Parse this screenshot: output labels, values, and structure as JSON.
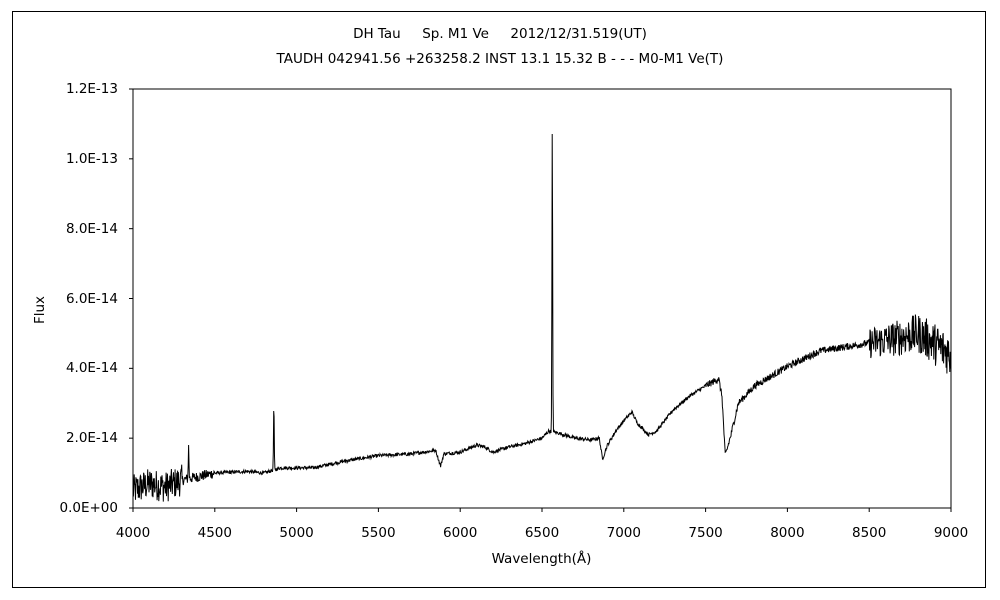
{
  "chart_data": {
    "type": "line",
    "title": "DH Tau     Sp. M1 Ve     2012/12/31.519(UT)",
    "subtitle": "TAUDH 042941.56 +263258.2 INST 13.1 15.32 B - - - M0-M1 Ve(T)",
    "xlabel": "Wavelength(Å)",
    "ylabel": "Flux",
    "xlim": [
      4000,
      9000
    ],
    "ylim": [
      0,
      1.2e-13
    ],
    "x_ticks": [
      4000,
      4500,
      5000,
      5500,
      6000,
      6500,
      7000,
      7500,
      8000,
      8500,
      9000
    ],
    "y_ticks": [
      {
        "value": 0,
        "label": "0.0E+00"
      },
      {
        "value": 2e-14,
        "label": "2.0E-14"
      },
      {
        "value": 4e-14,
        "label": "4.0E-14"
      },
      {
        "value": 6e-14,
        "label": "6.0E-14"
      },
      {
        "value": 8e-14,
        "label": "8.0E-14"
      },
      {
        "value": 1e-13,
        "label": "1.0E-13"
      },
      {
        "value": 1.2e-13,
        "label": "1.2E-13"
      }
    ],
    "grid": false,
    "legend": "none",
    "series_color": "#000000",
    "continuum": [
      [
        4000,
        5e-15
      ],
      [
        4100,
        7e-15
      ],
      [
        4200,
        6e-15
      ],
      [
        4300,
        8e-15
      ],
      [
        4400,
        9e-15
      ],
      [
        4500,
        1e-14
      ],
      [
        4700,
        1.05e-14
      ],
      [
        4800,
        1e-14
      ],
      [
        4900,
        1.15e-14
      ],
      [
        5000,
        1.15e-14
      ],
      [
        5100,
        1.15e-14
      ],
      [
        5200,
        1.25e-14
      ],
      [
        5300,
        1.35e-14
      ],
      [
        5500,
        1.5e-14
      ],
      [
        5700,
        1.55e-14
      ],
      [
        5850,
        1.65e-14
      ],
      [
        5880,
        1.2e-14
      ],
      [
        5900,
        1.55e-14
      ],
      [
        6000,
        1.6e-14
      ],
      [
        6100,
        1.8e-14
      ],
      [
        6150,
        1.75e-14
      ],
      [
        6200,
        1.6e-14
      ],
      [
        6300,
        1.75e-14
      ],
      [
        6400,
        1.85e-14
      ],
      [
        6500,
        2e-14
      ],
      [
        6540,
        2.2e-14
      ],
      [
        6600,
        2.15e-14
      ],
      [
        6700,
        2e-14
      ],
      [
        6800,
        1.95e-14
      ],
      [
        6850,
        2e-14
      ],
      [
        6870,
        1.4e-14
      ],
      [
        6900,
        1.8e-14
      ],
      [
        6950,
        2.2e-14
      ],
      [
        7000,
        2.5e-14
      ],
      [
        7050,
        2.75e-14
      ],
      [
        7080,
        2.45e-14
      ],
      [
        7150,
        2.1e-14
      ],
      [
        7200,
        2.2e-14
      ],
      [
        7300,
        2.8e-14
      ],
      [
        7400,
        3.2e-14
      ],
      [
        7500,
        3.5e-14
      ],
      [
        7580,
        3.7e-14
      ],
      [
        7600,
        3.2e-14
      ],
      [
        7620,
        1.5e-14
      ],
      [
        7650,
        2e-14
      ],
      [
        7700,
        3e-14
      ],
      [
        7800,
        3.5e-14
      ],
      [
        8000,
        4.05e-14
      ],
      [
        8200,
        4.5e-14
      ],
      [
        8400,
        4.65e-14
      ],
      [
        8600,
        4.8e-14
      ],
      [
        8800,
        5e-14
      ],
      [
        9000,
        4.4e-14
      ]
    ],
    "emission_lines": [
      {
        "x": 4340,
        "peak": 1.75e-14
      },
      {
        "x": 4861,
        "peak": 2.95e-14
      },
      {
        "x": 6563,
        "peak": 1.09e-13
      }
    ]
  }
}
